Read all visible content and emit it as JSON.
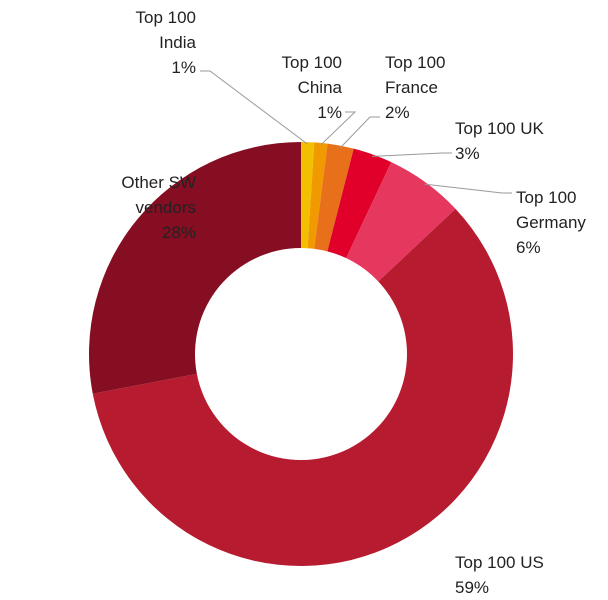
{
  "chart_data": {
    "type": "pie",
    "donut": true,
    "categories": [
      "Top 100\nIndia",
      "Top 100\nChina",
      "Top 100\nFrance",
      "Top 100 UK",
      "Top 100\nGermany",
      "Top 100 US",
      "Other SW\nvendors"
    ],
    "values": [
      1,
      1,
      2,
      3,
      6,
      59,
      28
    ],
    "value_labels": [
      "1%",
      "1%",
      "2%",
      "3%",
      "6%",
      "59%",
      "28%"
    ],
    "colors": [
      "#f2c000",
      "#f09a00",
      "#e8701a",
      "#e0002a",
      "#e6385e",
      "#b71b2f",
      "#850e22"
    ]
  }
}
